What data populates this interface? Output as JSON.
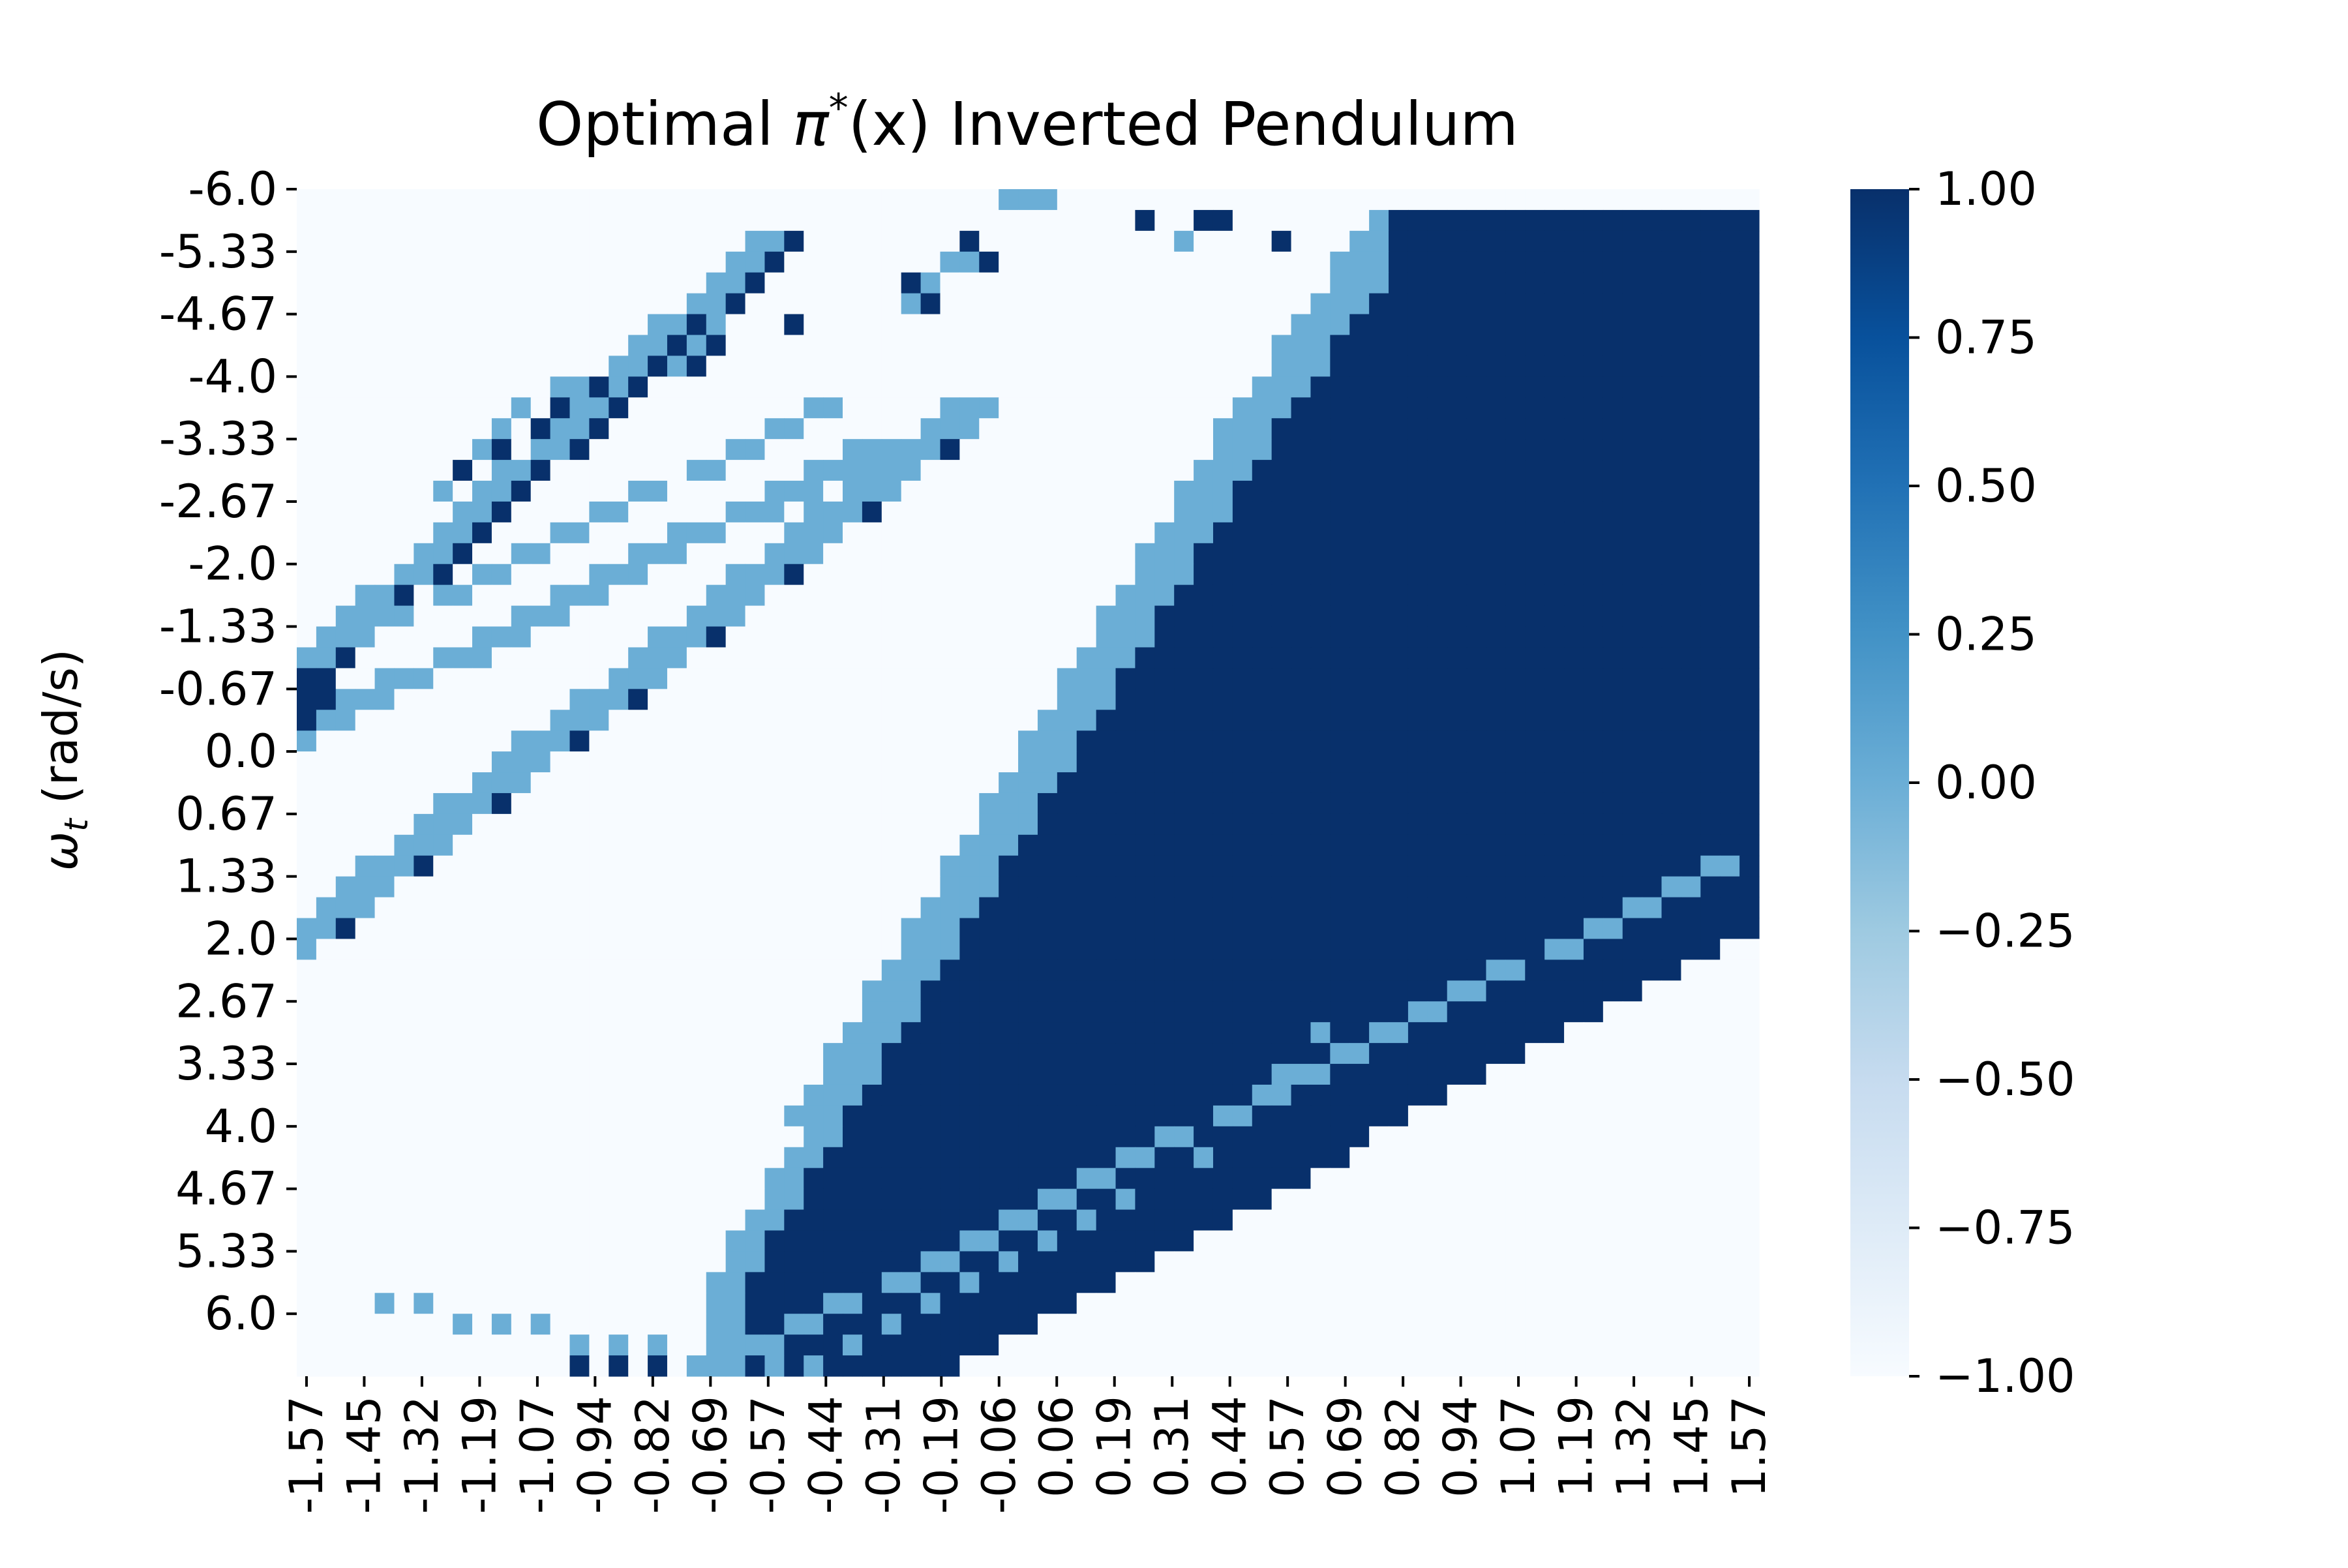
{
  "chart_data": {
    "type": "heatmap",
    "title": "Optimal π*(x) Inverted Pendulum",
    "title_parts": {
      "prefix": "Optimal ",
      "symbol": "π",
      "superscript": "*",
      "argument": "(x)",
      "suffix": " Inverted Pendulum"
    },
    "xlabel": "",
    "ylabel": "ωt (rad/s)",
    "ylabel_parts": {
      "symbol": "ω",
      "subscript": "t",
      "unit": " (rad/s)"
    },
    "x_ticks": [
      "-1.57",
      "-1.45",
      "-1.32",
      "-1.19",
      "-1.07",
      "-0.94",
      "-0.82",
      "-0.69",
      "-0.57",
      "-0.44",
      "-0.31",
      "-0.19",
      "-0.06",
      "0.06",
      "0.19",
      "0.31",
      "0.44",
      "0.57",
      "0.69",
      "0.82",
      "0.94",
      "1.07",
      "1.19",
      "1.32",
      "1.45",
      "1.57"
    ],
    "y_ticks": [
      "-6.0",
      "-5.33",
      "-4.67",
      "-4.0",
      "-3.33",
      "-2.67",
      "-2.0",
      "-1.33",
      "-0.67",
      "0.0",
      "0.67",
      "1.33",
      "2.0",
      "2.67",
      "3.33",
      "4.0",
      "4.67",
      "5.33",
      "6.0"
    ],
    "x_range": [
      -1.57,
      1.57
    ],
    "y_range": [
      -6.0,
      6.0
    ],
    "colorbar": {
      "ticks": [
        "1.00",
        "0.75",
        "0.50",
        "0.25",
        "0.00",
        "−0.25",
        "−0.50",
        "−0.75",
        "−1.00"
      ],
      "vmin": -1.0,
      "vmax": 1.0,
      "colormap": "Blues"
    },
    "value_colors": {
      "-1": "#f7fbff",
      "0": "#6baed6",
      "1": "#08306b"
    },
    "grid": false,
    "grid_size": {
      "columns": 75,
      "rows": 57
    },
    "regions": {
      "upper_streak_band_lower": [
        [
          0,
          35,
          4
        ],
        [
          1,
          36,
          5
        ],
        [
          2,
          37,
          7
        ],
        [
          3,
          39,
          7
        ],
        [
          4,
          40,
          9
        ],
        [
          5,
          41,
          11
        ],
        [
          6,
          42,
          14
        ],
        [
          7,
          43,
          16
        ],
        [
          8,
          44,
          17
        ],
        [
          9,
          45,
          18
        ],
        [
          10,
          46,
          19
        ],
        [
          11,
          47,
          21
        ],
        [
          12,
          48,
          22
        ],
        [
          13,
          50,
          23
        ],
        [
          14,
          51,
          24
        ],
        [
          15,
          52,
          24
        ],
        [
          16,
          53,
          26
        ],
        [
          17,
          54,
          27
        ],
        [
          18,
          55,
          28
        ],
        [
          19,
          56,
          30
        ],
        [
          20,
          57,
          32
        ],
        [
          21,
          58,
          33
        ],
        [
          22,
          59,
          34
        ],
        [
          23,
          60,
          36
        ],
        [
          24,
          61,
          37
        ],
        [
          25,
          62,
          38
        ],
        [
          26,
          63,
          39
        ],
        [
          27,
          64,
          41
        ],
        [
          28,
          65,
          43
        ],
        [
          29,
          66,
          44
        ],
        [
          30,
          67,
          45
        ],
        [
          31,
          68,
          46
        ],
        [
          32,
          69,
          47
        ],
        [
          33,
          70,
          49
        ],
        [
          34,
          71,
          51
        ],
        [
          35,
          72,
          52
        ],
        [
          36,
          73,
          53
        ]
      ],
      "upper_streak_band_upper": [
        [
          0,
          13,
          2
        ],
        [
          1,
          14,
          3
        ],
        [
          2,
          14,
          5
        ],
        [
          3,
          15,
          6
        ],
        [
          4,
          16,
          8
        ],
        [
          5,
          17,
          10
        ],
        [
          6,
          18,
          12
        ],
        [
          7,
          19,
          14
        ],
        [
          8,
          20,
          15
        ],
        [
          9,
          21,
          17
        ],
        [
          10,
          22,
          18
        ],
        [
          11,
          23,
          20
        ],
        [
          12,
          24,
          22
        ],
        [
          13,
          25,
          23
        ],
        [
          14,
          26,
          25
        ],
        [
          15,
          27,
          26
        ],
        [
          16,
          28,
          28
        ],
        [
          17,
          29,
          29
        ],
        [
          18,
          30,
          30
        ]
      ],
      "positive_region": [
        [
          67,
          3,
          73
        ],
        [
          66,
          5,
          73
        ],
        [
          65,
          6,
          73
        ],
        [
          64,
          7,
          73
        ],
        [
          63,
          8,
          73
        ],
        [
          62,
          9,
          73
        ],
        [
          61,
          9,
          73
        ],
        [
          60,
          10,
          73
        ],
        [
          59,
          11,
          73
        ],
        [
          58,
          12,
          73
        ],
        [
          57,
          13,
          73
        ],
        [
          56,
          14,
          73
        ],
        [
          55,
          15,
          73
        ],
        [
          54,
          16,
          73
        ],
        [
          53,
          17,
          73
        ],
        [
          52,
          18,
          73
        ],
        [
          51,
          19,
          73
        ],
        [
          50,
          20,
          73
        ],
        [
          49,
          21,
          73
        ],
        [
          48,
          22,
          73
        ],
        [
          47,
          23,
          73
        ],
        [
          46,
          24,
          73
        ],
        [
          45,
          25,
          73
        ],
        [
          44,
          26,
          73
        ],
        [
          43,
          27,
          73
        ],
        [
          42,
          28,
          73
        ],
        [
          41,
          29,
          73
        ],
        [
          40,
          30,
          73
        ],
        [
          39,
          31,
          73
        ],
        [
          38,
          32,
          73
        ],
        [
          37,
          33,
          73
        ],
        [
          36,
          34,
          73
        ],
        [
          35,
          35,
          73
        ],
        [
          34,
          36,
          73
        ],
        [
          33,
          37,
          73
        ],
        [
          32,
          38,
          73
        ],
        [
          31,
          39,
          73
        ],
        [
          30,
          40,
          73
        ],
        [
          29,
          41,
          73
        ],
        [
          28,
          42,
          73
        ],
        [
          27,
          43,
          73
        ],
        [
          26,
          44,
          73
        ],
        [
          25,
          45,
          73
        ],
        [
          24,
          46,
          73
        ],
        [
          23,
          47,
          73
        ],
        [
          22,
          48,
          73
        ],
        [
          21,
          49,
          73
        ],
        [
          20,
          50,
          73
        ],
        [
          19,
          51,
          73
        ],
        [
          18,
          52,
          73
        ],
        [
          17,
          53,
          73
        ],
        [
          16,
          54,
          73
        ],
        [
          15,
          55,
          73
        ],
        [
          14,
          56,
          73
        ],
        [
          13,
          57,
          73
        ],
        [
          12,
          58,
          73
        ],
        [
          11,
          59,
          73
        ],
        [
          10,
          60,
          73
        ],
        [
          9,
          61,
          73
        ],
        [
          8,
          62,
          73
        ],
        [
          7,
          63,
          73
        ],
        [
          6,
          64,
          73
        ],
        [
          5,
          65,
          73
        ],
        [
          4,
          66,
          73
        ],
        [
          3,
          67,
          73
        ],
        [
          2,
          68,
          73
        ],
        [
          1,
          69,
          73
        ],
        [
          0,
          70,
          73
        ]
      ],
      "lower_streak_band": [
        [
          45,
          35,
          48
        ],
        [
          44,
          36,
          49
        ],
        [
          43,
          37,
          50
        ],
        [
          42,
          38,
          51
        ],
        [
          41,
          39,
          52
        ],
        [
          40,
          40,
          53
        ],
        [
          39,
          41,
          54
        ],
        [
          38,
          42,
          55
        ],
        [
          37,
          43,
          56
        ],
        [
          36,
          44,
          57
        ],
        [
          35,
          45,
          58
        ],
        [
          34,
          46,
          59
        ],
        [
          33,
          47,
          60
        ],
        [
          32,
          48,
          61
        ],
        [
          31,
          49,
          62
        ],
        [
          30,
          50,
          63
        ],
        [
          29,
          51,
          64
        ],
        [
          28,
          52,
          65
        ],
        [
          27,
          53,
          66
        ],
        [
          26,
          54,
          67
        ],
        [
          25,
          55,
          68
        ],
        [
          24,
          56,
          69
        ],
        [
          23,
          57,
          70
        ],
        [
          22,
          58,
          71
        ],
        [
          21,
          59,
          72
        ],
        [
          20,
          60,
          73
        ]
      ],
      "lower_negative_band": [
        [
          44,
          48,
          75
        ],
        [
          43,
          49,
          75
        ],
        [
          42,
          50,
          75
        ],
        [
          41,
          51,
          75
        ],
        [
          40,
          52,
          75
        ],
        [
          39,
          53,
          75
        ],
        [
          38,
          54,
          75
        ],
        [
          37,
          55,
          75
        ],
        [
          36,
          56,
          75
        ],
        [
          35,
          57,
          75
        ],
        [
          34,
          58,
          75
        ],
        [
          33,
          59,
          75
        ],
        [
          32,
          60,
          75
        ],
        [
          31,
          61,
          75
        ],
        [
          30,
          62,
          75
        ],
        [
          29,
          63,
          75
        ],
        [
          28,
          64,
          75
        ],
        [
          27,
          65,
          75
        ],
        [
          26,
          66,
          75
        ],
        [
          25,
          67,
          75
        ],
        [
          24,
          68,
          75
        ],
        [
          23,
          69,
          75
        ],
        [
          22,
          70,
          75
        ],
        [
          21,
          71,
          75
        ],
        [
          20,
          72,
          75
        ]
      ]
    },
    "boundary_band_cells": [
      [
        44,
        1
      ],
      [
        44,
        2
      ],
      [
        45,
        2
      ],
      [
        45,
        3
      ],
      [
        46,
        3
      ],
      [
        46,
        4
      ],
      [
        47,
        4
      ],
      [
        47,
        5
      ],
      [
        48,
        5
      ],
      [
        48,
        6
      ],
      [
        49,
        6
      ],
      [
        49,
        7
      ],
      [
        50,
        7
      ],
      [
        50,
        8
      ],
      [
        51,
        8
      ],
      [
        51,
        9
      ],
      [
        52,
        9
      ],
      [
        52,
        10
      ],
      [
        53,
        10
      ],
      [
        53,
        11
      ],
      [
        54,
        11
      ],
      [
        54,
        12
      ],
      [
        55,
        12
      ],
      [
        55,
        13
      ],
      [
        56,
        13
      ],
      [
        56,
        14
      ],
      [
        57,
        14
      ],
      [
        57,
        15
      ],
      [
        58,
        15
      ],
      [
        58,
        16
      ],
      [
        59,
        16
      ],
      [
        59,
        17
      ],
      [
        60,
        17
      ],
      [
        60,
        18
      ],
      [
        61,
        18
      ],
      [
        61,
        19
      ],
      [
        62,
        19
      ],
      [
        62,
        20
      ],
      [
        63,
        20
      ],
      [
        63,
        21
      ],
      [
        64,
        21
      ],
      [
        64,
        22
      ],
      [
        65,
        22
      ],
      [
        65,
        23
      ],
      [
        66,
        23
      ],
      [
        66,
        24
      ],
      [
        67,
        24
      ],
      [
        67,
        25
      ],
      [
        68,
        25
      ],
      [
        68,
        26
      ],
      [
        69,
        26
      ],
      [
        69,
        27
      ],
      [
        70,
        27
      ],
      [
        70,
        28
      ],
      [
        71,
        28
      ],
      [
        71,
        29
      ],
      [
        72,
        29
      ],
      [
        72,
        30
      ],
      [
        73,
        30
      ],
      [
        73,
        31
      ],
      [
        74,
        31
      ],
      [
        74,
        32
      ],
      [
        75,
        32
      ],
      [
        75,
        33
      ],
      [
        76,
        33
      ],
      [
        76,
        34
      ]
    ],
    "scattered_cells": {
      "0": [
        [
          36,
          0
        ],
        [
          37,
          0
        ],
        [
          38,
          0
        ],
        [
          46,
          1
        ],
        [
          45,
          2
        ],
        [
          33,
          3
        ],
        [
          34,
          3
        ],
        [
          32,
          4
        ],
        [
          31,
          5
        ],
        [
          21,
          6
        ],
        [
          20,
          7
        ],
        [
          19,
          8
        ],
        [
          14,
          9
        ],
        [
          13,
          9
        ],
        [
          11,
          10
        ],
        [
          10,
          11
        ],
        [
          9,
          12
        ],
        [
          8,
          13
        ],
        [
          7,
          14
        ],
        [
          52,
          40
        ],
        [
          50,
          42
        ],
        [
          48,
          44
        ],
        [
          46,
          46
        ],
        [
          44,
          47
        ],
        [
          42,
          48
        ],
        [
          40,
          49
        ],
        [
          38,
          50
        ],
        [
          36,
          51
        ],
        [
          34,
          52
        ],
        [
          32,
          53
        ],
        [
          30,
          54
        ],
        [
          28,
          55
        ],
        [
          26,
          56
        ],
        [
          24,
          56
        ],
        [
          22,
          56
        ],
        [
          20,
          56
        ],
        [
          18,
          55
        ],
        [
          16,
          55
        ],
        [
          14,
          55
        ],
        [
          12,
          54
        ],
        [
          10,
          54
        ],
        [
          8,
          54
        ],
        [
          6,
          53
        ],
        [
          4,
          53
        ]
      ],
      "1": [
        [
          43,
          1
        ],
        [
          46,
          1
        ],
        [
          47,
          1
        ],
        [
          50,
          2
        ],
        [
          34,
          2
        ],
        [
          35,
          3
        ],
        [
          31,
          4
        ],
        [
          32,
          5
        ],
        [
          25,
          6
        ],
        [
          21,
          7
        ],
        [
          20,
          8
        ],
        [
          15,
          9
        ],
        [
          13,
          10
        ],
        [
          12,
          11
        ],
        [
          10,
          12
        ],
        [
          8,
          13
        ],
        [
          46,
          45
        ],
        [
          48,
          43
        ],
        [
          50,
          41
        ],
        [
          44,
          47
        ],
        [
          42,
          49
        ],
        [
          40,
          51
        ],
        [
          38,
          52
        ],
        [
          36,
          52
        ],
        [
          34,
          53
        ],
        [
          32,
          54
        ],
        [
          30,
          55
        ],
        [
          28,
          56
        ],
        [
          26,
          57
        ],
        [
          24,
          57
        ],
        [
          22,
          57
        ],
        [
          20,
          57
        ],
        [
          18,
          56
        ],
        [
          16,
          56
        ],
        [
          14,
          56
        ]
      ]
    }
  }
}
